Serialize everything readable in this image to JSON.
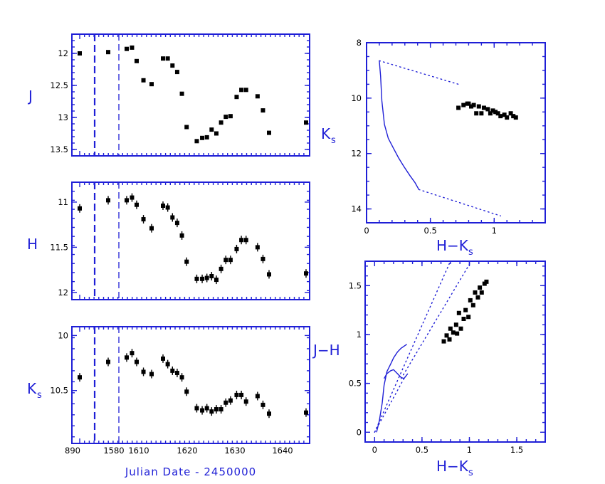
{
  "colors": {
    "axis": "#1f1fd6",
    "points": "#000000"
  },
  "light_curves": {
    "xlabel": "Julian Date - 2450000",
    "x_tick_labels": [
      "890",
      "1580",
      "1610",
      "1620",
      "1630",
      "1640"
    ],
    "observed_x": [
      1592.0,
      1604.6,
      1605.8,
      1606.5,
      1607.1,
      1607.8,
      1609.2,
      1612.3,
      1612.9,
      1613.6,
      1614.2,
      1614.7,
      1615.3,
      1617.7,
      1618.4,
      1618.9,
      1619.4,
      1620.0,
      1621.1,
      1622.3,
      1623.3,
      1624.5,
      1624.9,
      1625.8,
      1630.8,
      1631.3,
      1634.2,
      1634.7,
      1643.0
    ],
    "panels": [
      {
        "label": "J",
        "ylim": [
          13.6,
          11.7
        ],
        "yticks": [
          12,
          12.5,
          13,
          13.5
        ],
        "ytick_labels": [
          "12",
          "12.5",
          "13",
          "13.5"
        ],
        "error_bars": false,
        "series": [
          {
            "x": 890,
            "y": 12.0
          },
          {
            "x": 1582.5,
            "y": 11.98
          },
          {
            "x": 1587.5,
            "y": 11.93
          },
          {
            "x": 1588.3,
            "y": 11.91
          },
          {
            "x": 1589.0,
            "y": 12.12
          },
          {
            "x": 1590.0,
            "y": 12.42
          },
          {
            "x": 1591.2,
            "y": 12.48
          },
          {
            "x": 1614.5,
            "y": 12.08
          },
          {
            "x": 1615.2,
            "y": 12.08
          },
          {
            "x": 1615.9,
            "y": 12.19
          },
          {
            "x": 1616.6,
            "y": 12.29
          },
          {
            "x": 1617.3,
            "y": 12.63
          },
          {
            "x": 1618.0,
            "y": 13.15
          },
          {
            "x": 1619.5,
            "y": 13.37
          },
          {
            "x": 1620.3,
            "y": 13.32
          },
          {
            "x": 1621.0,
            "y": 13.31
          },
          {
            "x": 1621.7,
            "y": 13.19
          },
          {
            "x": 1622.4,
            "y": 13.25
          },
          {
            "x": 1623.1,
            "y": 13.08
          },
          {
            "x": 1623.8,
            "y": 12.99
          },
          {
            "x": 1624.5,
            "y": 12.98
          },
          {
            "x": 1625.4,
            "y": 12.68
          },
          {
            "x": 1626.1,
            "y": 12.57
          },
          {
            "x": 1626.8,
            "y": 12.57
          },
          {
            "x": 1628.5,
            "y": 12.67
          },
          {
            "x": 1629.3,
            "y": 12.89
          },
          {
            "x": 1630.2,
            "y": 13.24
          },
          {
            "x": 1643.0,
            "y": 13.08
          }
        ]
      },
      {
        "label": "H",
        "ylim": [
          12.08,
          10.78
        ],
        "yticks": [
          11,
          11.5,
          12
        ],
        "ytick_labels": [
          "11",
          "11.5",
          "12"
        ],
        "error_bars": true,
        "series": [
          {
            "x": 890,
            "y": 11.07
          },
          {
            "x": 1582.5,
            "y": 10.98
          },
          {
            "x": 1587.5,
            "y": 10.98
          },
          {
            "x": 1588.3,
            "y": 10.95
          },
          {
            "x": 1589.0,
            "y": 11.03
          },
          {
            "x": 1590.0,
            "y": 11.19
          },
          {
            "x": 1591.2,
            "y": 11.29
          },
          {
            "x": 1614.5,
            "y": 11.04
          },
          {
            "x": 1615.2,
            "y": 11.06
          },
          {
            "x": 1615.9,
            "y": 11.17
          },
          {
            "x": 1616.6,
            "y": 11.23
          },
          {
            "x": 1617.3,
            "y": 11.37
          },
          {
            "x": 1618.0,
            "y": 11.66
          },
          {
            "x": 1619.5,
            "y": 11.85
          },
          {
            "x": 1620.3,
            "y": 11.85
          },
          {
            "x": 1621.0,
            "y": 11.84
          },
          {
            "x": 1621.7,
            "y": 11.82
          },
          {
            "x": 1622.4,
            "y": 11.86
          },
          {
            "x": 1623.1,
            "y": 11.74
          },
          {
            "x": 1623.8,
            "y": 11.64
          },
          {
            "x": 1624.5,
            "y": 11.64
          },
          {
            "x": 1625.4,
            "y": 11.52
          },
          {
            "x": 1626.1,
            "y": 11.42
          },
          {
            "x": 1626.8,
            "y": 11.42
          },
          {
            "x": 1628.5,
            "y": 11.5
          },
          {
            "x": 1629.3,
            "y": 11.63
          },
          {
            "x": 1630.2,
            "y": 11.8
          },
          {
            "x": 1643.0,
            "y": 11.79
          }
        ]
      },
      {
        "label": "K",
        "label_sub": "s",
        "ylim": [
          10.98,
          9.92
        ],
        "yticks": [
          10,
          10.5
        ],
        "ytick_labels": [
          "10",
          "10.5"
        ],
        "error_bars": true,
        "series": [
          {
            "x": 890,
            "y": 10.38
          },
          {
            "x": 1582.5,
            "y": 10.24
          },
          {
            "x": 1587.5,
            "y": 10.2
          },
          {
            "x": 1588.3,
            "y": 10.16
          },
          {
            "x": 1589.0,
            "y": 10.24
          },
          {
            "x": 1590.0,
            "y": 10.33
          },
          {
            "x": 1591.2,
            "y": 10.35
          },
          {
            "x": 1614.5,
            "y": 10.21
          },
          {
            "x": 1615.2,
            "y": 10.26
          },
          {
            "x": 1615.9,
            "y": 10.32
          },
          {
            "x": 1616.6,
            "y": 10.34
          },
          {
            "x": 1617.3,
            "y": 10.38
          },
          {
            "x": 1618.0,
            "y": 10.51
          },
          {
            "x": 1619.5,
            "y": 10.66
          },
          {
            "x": 1620.3,
            "y": 10.68
          },
          {
            "x": 1621.0,
            "y": 10.66
          },
          {
            "x": 1621.7,
            "y": 10.69
          },
          {
            "x": 1622.4,
            "y": 10.67
          },
          {
            "x": 1623.1,
            "y": 10.67
          },
          {
            "x": 1623.8,
            "y": 10.61
          },
          {
            "x": 1624.5,
            "y": 10.59
          },
          {
            "x": 1625.4,
            "y": 10.54
          },
          {
            "x": 1626.1,
            "y": 10.54
          },
          {
            "x": 1626.8,
            "y": 10.6
          },
          {
            "x": 1628.5,
            "y": 10.55
          },
          {
            "x": 1629.3,
            "y": 10.63
          },
          {
            "x": 1630.2,
            "y": 10.71
          },
          {
            "x": 1643.0,
            "y": 10.7
          }
        ]
      }
    ]
  },
  "chart_data": [
    {
      "type": "scatter",
      "title": "",
      "xlabel": "Julian Date - 2450000",
      "ylabel": "J",
      "ylim": [
        13.6,
        11.7
      ],
      "note_x_axis": "broken axis; tick labels 890, 1580, 1610, 1620, 1630, 1640",
      "x": [
        890,
        1582.5,
        1587.5,
        1588.3,
        1589.0,
        1590.0,
        1591.2,
        1614.5,
        1615.2,
        1615.9,
        1616.6,
        1617.3,
        1618.0,
        1619.5,
        1620.3,
        1621.0,
        1621.7,
        1622.4,
        1623.1,
        1623.8,
        1624.5,
        1625.4,
        1626.1,
        1626.8,
        1628.5,
        1629.3,
        1630.2,
        1643.0
      ],
      "y": [
        12.0,
        11.98,
        11.93,
        11.91,
        12.12,
        12.42,
        12.48,
        12.08,
        12.08,
        12.19,
        12.29,
        12.63,
        13.15,
        13.37,
        13.32,
        13.31,
        13.19,
        13.25,
        13.08,
        12.99,
        12.98,
        12.68,
        12.57,
        12.57,
        12.67,
        12.89,
        13.24,
        13.08
      ]
    },
    {
      "type": "scatter",
      "title": "",
      "xlabel": "Julian Date - 2450000",
      "ylabel": "H",
      "ylim": [
        12.08,
        10.78
      ],
      "x": [
        890,
        1582.5,
        1587.5,
        1588.3,
        1589.0,
        1590.0,
        1591.2,
        1614.5,
        1615.2,
        1615.9,
        1616.6,
        1617.3,
        1618.0,
        1619.5,
        1620.3,
        1621.0,
        1621.7,
        1622.4,
        1623.1,
        1623.8,
        1624.5,
        1625.4,
        1626.1,
        1626.8,
        1628.5,
        1629.3,
        1630.2,
        1643.0
      ],
      "y": [
        11.07,
        10.98,
        10.98,
        10.95,
        11.03,
        11.19,
        11.29,
        11.04,
        11.06,
        11.17,
        11.23,
        11.37,
        11.66,
        11.85,
        11.85,
        11.84,
        11.82,
        11.86,
        11.74,
        11.64,
        11.64,
        11.52,
        11.42,
        11.42,
        11.5,
        11.63,
        11.8,
        11.79
      ]
    },
    {
      "type": "scatter",
      "title": "",
      "xlabel": "Julian Date - 2450000",
      "ylabel": "Ks",
      "ylim": [
        10.98,
        9.92
      ],
      "x": [
        890,
        1582.5,
        1587.5,
        1588.3,
        1589.0,
        1590.0,
        1591.2,
        1614.5,
        1615.2,
        1615.9,
        1616.6,
        1617.3,
        1618.0,
        1619.5,
        1620.3,
        1621.0,
        1621.7,
        1622.4,
        1623.1,
        1623.8,
        1624.5,
        1625.4,
        1626.1,
        1626.8,
        1628.5,
        1629.3,
        1630.2,
        1643.0
      ],
      "y": [
        10.38,
        10.24,
        10.2,
        10.16,
        10.24,
        10.33,
        10.35,
        10.21,
        10.26,
        10.32,
        10.34,
        10.38,
        10.51,
        10.66,
        10.68,
        10.66,
        10.69,
        10.67,
        10.67,
        10.61,
        10.59,
        10.54,
        10.54,
        10.6,
        10.55,
        10.63,
        10.71,
        10.7
      ]
    },
    {
      "type": "scatter",
      "title": "",
      "xlabel": "H-Ks",
      "ylabel": "Ks",
      "xlim": [
        0,
        1.4
      ],
      "ylim": [
        14.5,
        8
      ],
      "xticks": [
        0,
        0.5,
        1
      ],
      "xtick_labels": [
        "0",
        "0.5",
        "1"
      ],
      "yticks": [
        8,
        10,
        12,
        14
      ],
      "ytick_labels": [
        "8",
        "10",
        "12",
        "14"
      ],
      "x": [
        0.72,
        0.76,
        0.79,
        0.8,
        0.82,
        0.84,
        0.86,
        0.88,
        0.9,
        0.92,
        0.95,
        0.97,
        0.99,
        1.01,
        1.03,
        1.05,
        1.08,
        1.1,
        1.13,
        1.15,
        1.17
      ],
      "y": [
        10.35,
        10.25,
        10.2,
        10.2,
        10.3,
        10.25,
        10.55,
        10.3,
        10.55,
        10.35,
        10.4,
        10.55,
        10.45,
        10.5,
        10.55,
        10.65,
        10.6,
        10.7,
        10.55,
        10.65,
        10.7
      ],
      "curves": [
        {
          "kind": "solid",
          "x": [
            0.1,
            0.11,
            0.12,
            0.14,
            0.17,
            0.21,
            0.25,
            0.29,
            0.34,
            0.38,
            0.41
          ],
          "y": [
            8.65,
            9.2,
            10.1,
            10.95,
            11.45,
            11.8,
            12.15,
            12.45,
            12.8,
            13.05,
            13.3
          ]
        },
        {
          "kind": "dotted",
          "x": [
            0.1,
            0.72
          ],
          "y": [
            8.65,
            9.5
          ]
        },
        {
          "kind": "dotted",
          "x": [
            0.41,
            1.05
          ],
          "y": [
            13.3,
            14.25
          ]
        }
      ]
    },
    {
      "type": "scatter",
      "title": "",
      "xlabel": "H-Ks",
      "ylabel": "J-H",
      "xlim": [
        -0.1,
        1.8
      ],
      "ylim": [
        -0.1,
        1.75
      ],
      "xticks": [
        0,
        0.5,
        1,
        1.5
      ],
      "xtick_labels": [
        "0",
        "0.5",
        "1",
        "1.5"
      ],
      "yticks": [
        0,
        0.5,
        1,
        1.5
      ],
      "ytick_labels": [
        "0",
        "0.5",
        "1",
        "1.5"
      ],
      "x": [
        0.73,
        0.76,
        0.79,
        0.8,
        0.83,
        0.86,
        0.87,
        0.89,
        0.91,
        0.94,
        0.96,
        0.99,
        1.01,
        1.04,
        1.06,
        1.09,
        1.11,
        1.13,
        1.16,
        1.18
      ],
      "y": [
        0.93,
        0.99,
        0.95,
        1.06,
        1.02,
        1.1,
        1.01,
        1.22,
        1.06,
        1.16,
        1.25,
        1.18,
        1.35,
        1.3,
        1.43,
        1.38,
        1.48,
        1.43,
        1.52,
        1.54
      ],
      "curves": [
        {
          "kind": "solid",
          "x": [
            0.02,
            0.05,
            0.08,
            0.1,
            0.13,
            0.17,
            0.2,
            0.24,
            0.28,
            0.31,
            0.34
          ],
          "y": [
            0.0,
            0.12,
            0.3,
            0.48,
            0.62,
            0.7,
            0.76,
            0.82,
            0.86,
            0.88,
            0.9
          ]
        },
        {
          "kind": "solid",
          "x": [
            0.1,
            0.13,
            0.17,
            0.2,
            0.24,
            0.28,
            0.31,
            0.35
          ],
          "y": [
            0.55,
            0.6,
            0.63,
            0.64,
            0.6,
            0.56,
            0.55,
            0.6
          ]
        },
        {
          "kind": "dotted",
          "x": [
            0.0,
            0.8
          ],
          "y": [
            0.0,
            1.75
          ]
        },
        {
          "kind": "dotted",
          "x": [
            0.28,
            1.02
          ],
          "y": [
            0.55,
            1.75
          ]
        },
        {
          "kind": "dotted",
          "x": [
            0.31,
            0.0
          ],
          "y": [
            0.55,
            0.0
          ]
        }
      ]
    }
  ]
}
